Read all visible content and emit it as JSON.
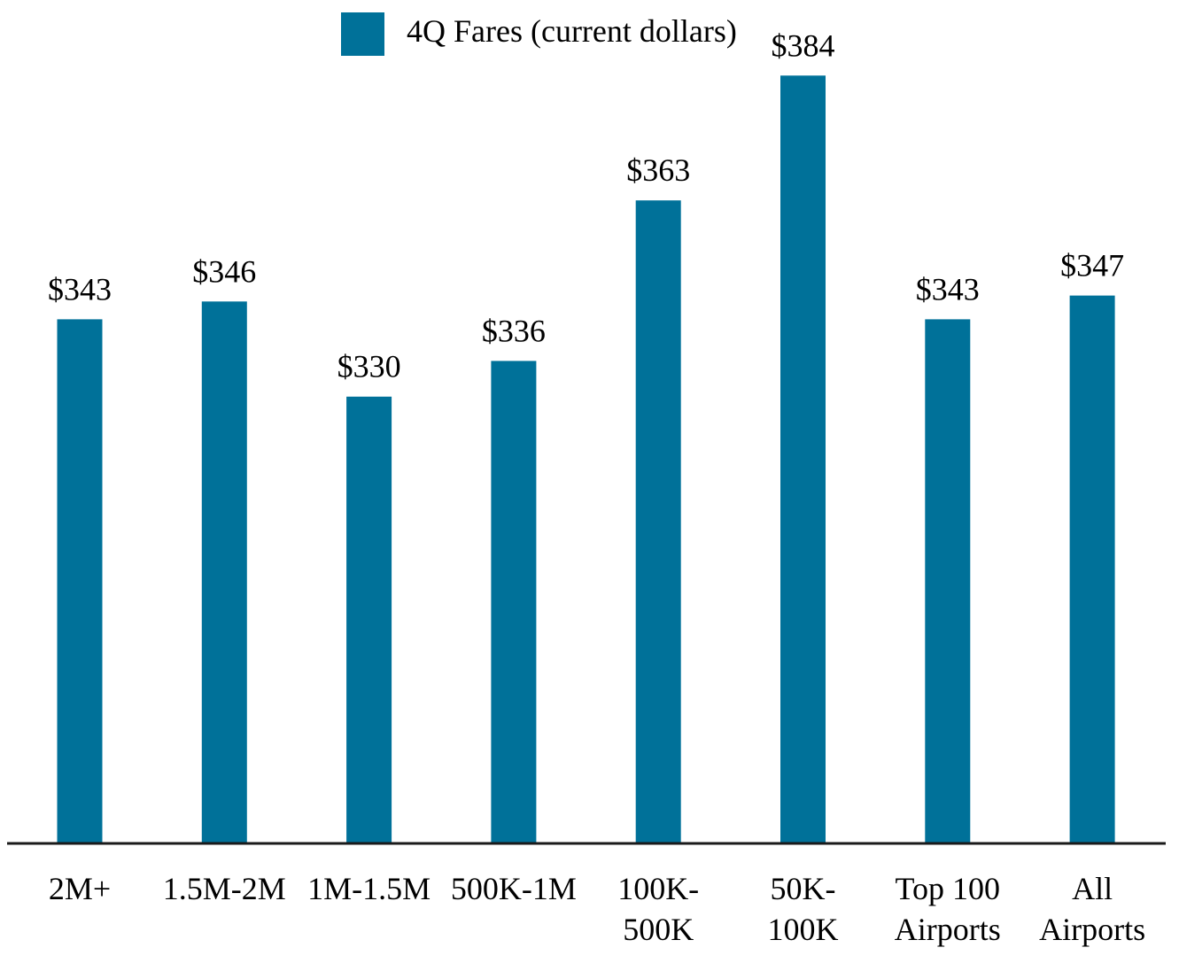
{
  "chart_data": {
    "type": "bar",
    "categories": [
      [
        "2M+"
      ],
      [
        "1.5M-2M"
      ],
      [
        "1M-1.5M"
      ],
      [
        "500K-1M"
      ],
      [
        "100K-",
        "500K"
      ],
      [
        "50K-",
        "100K"
      ],
      [
        "Top 100",
        "Airports"
      ],
      [
        "All",
        "Airports"
      ]
    ],
    "series": [
      {
        "name": "4Q Fares (current dollars)",
        "values": [
          343,
          346,
          330,
          336,
          363,
          384,
          343,
          347
        ],
        "data_labels": [
          "$343",
          "$346",
          "$330",
          "$336",
          "$363",
          "$384",
          "$343",
          "$347"
        ]
      }
    ],
    "title": "",
    "xlabel": "",
    "ylabel": "",
    "ylim": [
      255,
      390
    ],
    "grid": false,
    "legend_position": "top",
    "colors": {
      "bar": "#007199",
      "axis": "#1a1a1a"
    }
  }
}
